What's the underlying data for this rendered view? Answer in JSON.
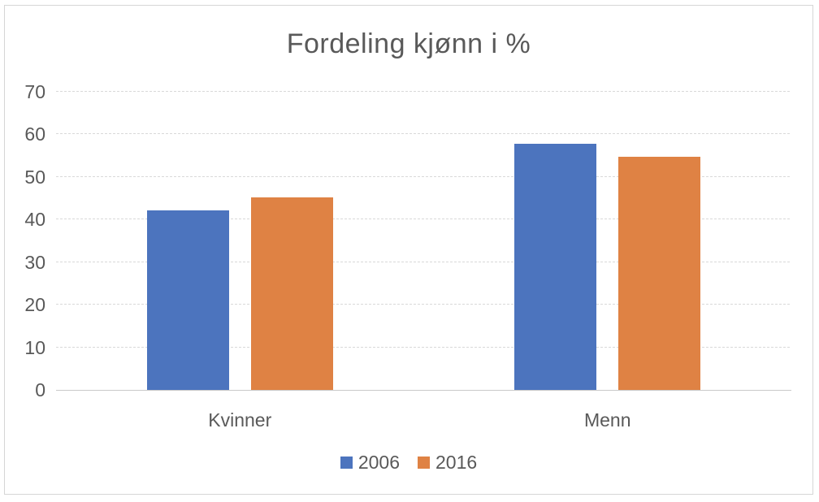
{
  "chart_data": {
    "type": "bar",
    "title": "Fordeling kjønn i %",
    "categories": [
      "Kvinner",
      "Menn"
    ],
    "series": [
      {
        "name": "2006",
        "color": "#4C74BE",
        "values": [
          42.2,
          57.8
        ]
      },
      {
        "name": "2016",
        "color": "#DF8244",
        "values": [
          45.3,
          54.7
        ]
      }
    ],
    "ylim": [
      0,
      70
    ],
    "yticks": [
      0,
      10,
      20,
      30,
      40,
      50,
      60,
      70
    ],
    "grid": "horizontal-dashed",
    "legend_position": "bottom",
    "text_color": "#595959",
    "gridline_color": "#D9D9D9"
  }
}
